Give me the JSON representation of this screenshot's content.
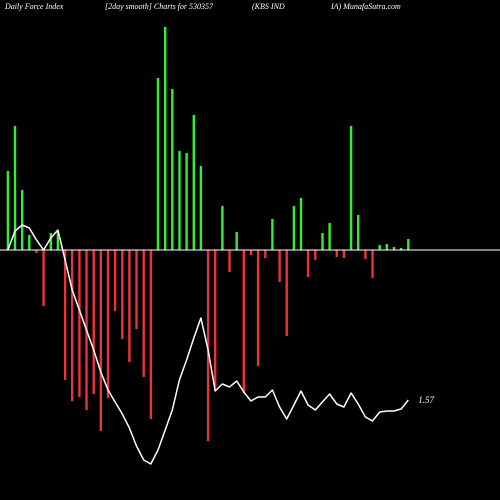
{
  "header": {
    "part1": "Daily Force  Index",
    "part2": "[2day smooth] Charts for 530357",
    "part3": "(KBS IND",
    "part4": "IA) MunafaSutra.com"
  },
  "colors": {
    "background": "#000000",
    "positive": "#33ee33",
    "negative": "#ee3333",
    "line": "#ffffff"
  },
  "chart_data": {
    "type": "bar",
    "title": "",
    "bars": [
      {
        "x": 1,
        "v": 79
      },
      {
        "x": 2,
        "v": 124
      },
      {
        "x": 3,
        "v": 60
      },
      {
        "x": 4,
        "v": 15
      },
      {
        "x": 5,
        "v": -3
      },
      {
        "x": 6,
        "v": -56
      },
      {
        "x": 7,
        "v": 17
      },
      {
        "x": 8,
        "v": 19
      },
      {
        "x": 9,
        "v": -130
      },
      {
        "x": 10,
        "v": -151
      },
      {
        "x": 11,
        "v": -147
      },
      {
        "x": 12,
        "v": -160
      },
      {
        "x": 13,
        "v": -144
      },
      {
        "x": 14,
        "v": -181
      },
      {
        "x": 15,
        "v": -148
      },
      {
        "x": 16,
        "v": -61
      },
      {
        "x": 17,
        "v": -89
      },
      {
        "x": 18,
        "v": -112
      },
      {
        "x": 19,
        "v": -79
      },
      {
        "x": 20,
        "v": -127
      },
      {
        "x": 21,
        "v": -169
      },
      {
        "x": 22,
        "v": 172
      },
      {
        "x": 23,
        "v": 223
      },
      {
        "x": 24,
        "v": 161
      },
      {
        "x": 25,
        "v": 99
      },
      {
        "x": 26,
        "v": 97
      },
      {
        "x": 27,
        "v": 135
      },
      {
        "x": 28,
        "v": 84
      },
      {
        "x": 29,
        "v": -191
      },
      {
        "x": 30,
        "v": -138
      },
      {
        "x": 31,
        "v": 44
      },
      {
        "x": 32,
        "v": -22
      },
      {
        "x": 33,
        "v": 18
      },
      {
        "x": 34,
        "v": -143
      },
      {
        "x": 35,
        "v": -5
      },
      {
        "x": 36,
        "v": -116
      },
      {
        "x": 37,
        "v": -8
      },
      {
        "x": 38,
        "v": 31
      },
      {
        "x": 39,
        "v": -32
      },
      {
        "x": 40,
        "v": -86
      },
      {
        "x": 41,
        "v": 44
      },
      {
        "x": 42,
        "v": 52
      },
      {
        "x": 43,
        "v": -27
      },
      {
        "x": 44,
        "v": -10
      },
      {
        "x": 45,
        "v": 17
      },
      {
        "x": 46,
        "v": 27
      },
      {
        "x": 47,
        "v": -7
      },
      {
        "x": 48,
        "v": -8
      },
      {
        "x": 49,
        "v": 124
      },
      {
        "x": 50,
        "v": 35
      },
      {
        "x": 51,
        "v": -9
      },
      {
        "x": 52,
        "v": -28
      },
      {
        "x": 53,
        "v": 5
      },
      {
        "x": 54,
        "v": 6
      },
      {
        "x": 55,
        "v": 3
      },
      {
        "x": 56,
        "v": 2
      },
      {
        "x": 57,
        "v": 11
      }
    ],
    "line": [
      {
        "x": 1,
        "v": 0
      },
      {
        "x": 2,
        "v": 19
      },
      {
        "x": 3,
        "v": 25
      },
      {
        "x": 4,
        "v": 22
      },
      {
        "x": 5,
        "v": 10
      },
      {
        "x": 6,
        "v": 0
      },
      {
        "x": 7,
        "v": 12
      },
      {
        "x": 8,
        "v": 20
      },
      {
        "x": 9,
        "v": -10
      },
      {
        "x": 10,
        "v": -40
      },
      {
        "x": 11,
        "v": -60
      },
      {
        "x": 12,
        "v": -80
      },
      {
        "x": 13,
        "v": -100
      },
      {
        "x": 14,
        "v": -122
      },
      {
        "x": 15,
        "v": -140
      },
      {
        "x": 16,
        "v": -152
      },
      {
        "x": 17,
        "v": -164
      },
      {
        "x": 18,
        "v": -178
      },
      {
        "x": 19,
        "v": -196
      },
      {
        "x": 20,
        "v": -210
      },
      {
        "x": 21,
        "v": -214
      },
      {
        "x": 22,
        "v": -200
      },
      {
        "x": 23,
        "v": -180
      },
      {
        "x": 24,
        "v": -160
      },
      {
        "x": 25,
        "v": -130
      },
      {
        "x": 26,
        "v": -110
      },
      {
        "x": 27,
        "v": -88
      },
      {
        "x": 28,
        "v": -68
      },
      {
        "x": 29,
        "v": -100
      },
      {
        "x": 30,
        "v": -141
      },
      {
        "x": 31,
        "v": -134
      },
      {
        "x": 32,
        "v": -137
      },
      {
        "x": 33,
        "v": -131
      },
      {
        "x": 34,
        "v": -142
      },
      {
        "x": 35,
        "v": -151
      },
      {
        "x": 36,
        "v": -147
      },
      {
        "x": 37,
        "v": -147
      },
      {
        "x": 38,
        "v": -140
      },
      {
        "x": 39,
        "v": -157
      },
      {
        "x": 40,
        "v": -169
      },
      {
        "x": 41,
        "v": -155
      },
      {
        "x": 42,
        "v": -141
      },
      {
        "x": 43,
        "v": -155
      },
      {
        "x": 44,
        "v": -160
      },
      {
        "x": 45,
        "v": -152
      },
      {
        "x": 46,
        "v": -144
      },
      {
        "x": 47,
        "v": -154
      },
      {
        "x": 48,
        "v": -157
      },
      {
        "x": 49,
        "v": -143
      },
      {
        "x": 50,
        "v": -154
      },
      {
        "x": 51,
        "v": -167
      },
      {
        "x": 52,
        "v": -171
      },
      {
        "x": 53,
        "v": -162
      },
      {
        "x": 54,
        "v": -161
      },
      {
        "x": 55,
        "v": -161
      },
      {
        "x": 56,
        "v": -159
      },
      {
        "x": 57,
        "v": -150
      }
    ],
    "last_value_label": "1.57",
    "xlim": [
      0,
      58
    ],
    "ylim": [
      -250,
      250
    ],
    "zero_line": true,
    "grid": false,
    "legend": "none"
  }
}
